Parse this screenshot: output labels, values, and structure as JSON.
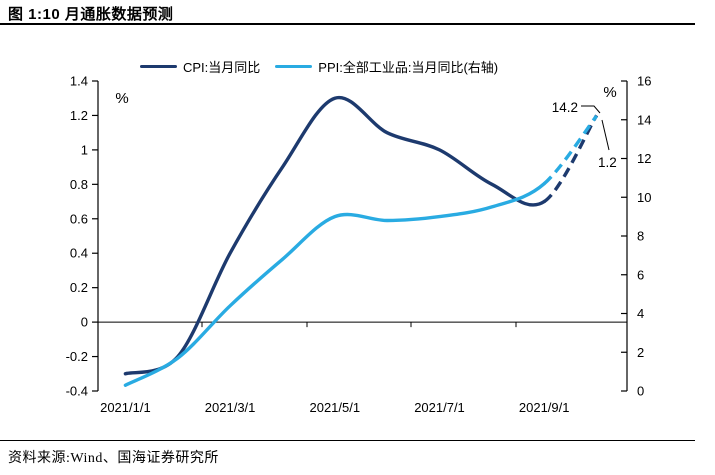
{
  "figure": {
    "title": "图 1:10 月通胀数据预测",
    "source": "资料来源:Wind、国海证券研究所"
  },
  "chart_data": {
    "type": "line",
    "title": "图 1:10 月通胀数据预测",
    "x": [
      "2021/1",
      "2021/2",
      "2021/3",
      "2021/4",
      "2021/5",
      "2021/6",
      "2021/7",
      "2021/8",
      "2021/9",
      "2021/10"
    ],
    "x_axis_tick_labels": [
      "2021/1/1",
      "2021/3/1",
      "2021/5/1",
      "2021/7/1",
      "2021/9/1"
    ],
    "series": [
      {
        "name": "CPI:当月同比",
        "axis": "left",
        "color": "#1d3a6e",
        "values": [
          -0.3,
          -0.2,
          0.4,
          0.9,
          1.3,
          1.1,
          1.0,
          0.8,
          0.7,
          1.2
        ],
        "forecast_start_index": 8,
        "forecast_style": "dashed"
      },
      {
        "name": "PPI:全部工业品:当月同比(右轴)",
        "axis": "right",
        "color": "#29abe2",
        "values": [
          0.3,
          1.7,
          4.4,
          6.8,
          9.0,
          8.8,
          9.0,
          9.5,
          10.7,
          14.2
        ],
        "forecast_start_index": 8,
        "forecast_style": "dashed"
      }
    ],
    "left_axis": {
      "unit_label": "%",
      "min": -0.4,
      "max": 1.4,
      "tick_labels": [
        "1.4",
        "1.2",
        "1",
        "0.8",
        "0.6",
        "0.4",
        "0.2",
        "0",
        "-0.2",
        "-0.4"
      ]
    },
    "right_axis": {
      "unit_label": "%",
      "min": 0,
      "max": 16,
      "tick_labels": [
        "16",
        "14",
        "12",
        "10",
        "8",
        "6",
        "4",
        "2",
        "0"
      ]
    },
    "annotations": [
      {
        "text": "14.2",
        "series": "PPI:全部工业品:当月同比(右轴)",
        "point": "2021/10"
      },
      {
        "text": "1.2",
        "series": "CPI:当月同比",
        "point": "2021/10"
      }
    ],
    "legend_position": "top",
    "grid": "none",
    "axis_color": "#000000"
  }
}
